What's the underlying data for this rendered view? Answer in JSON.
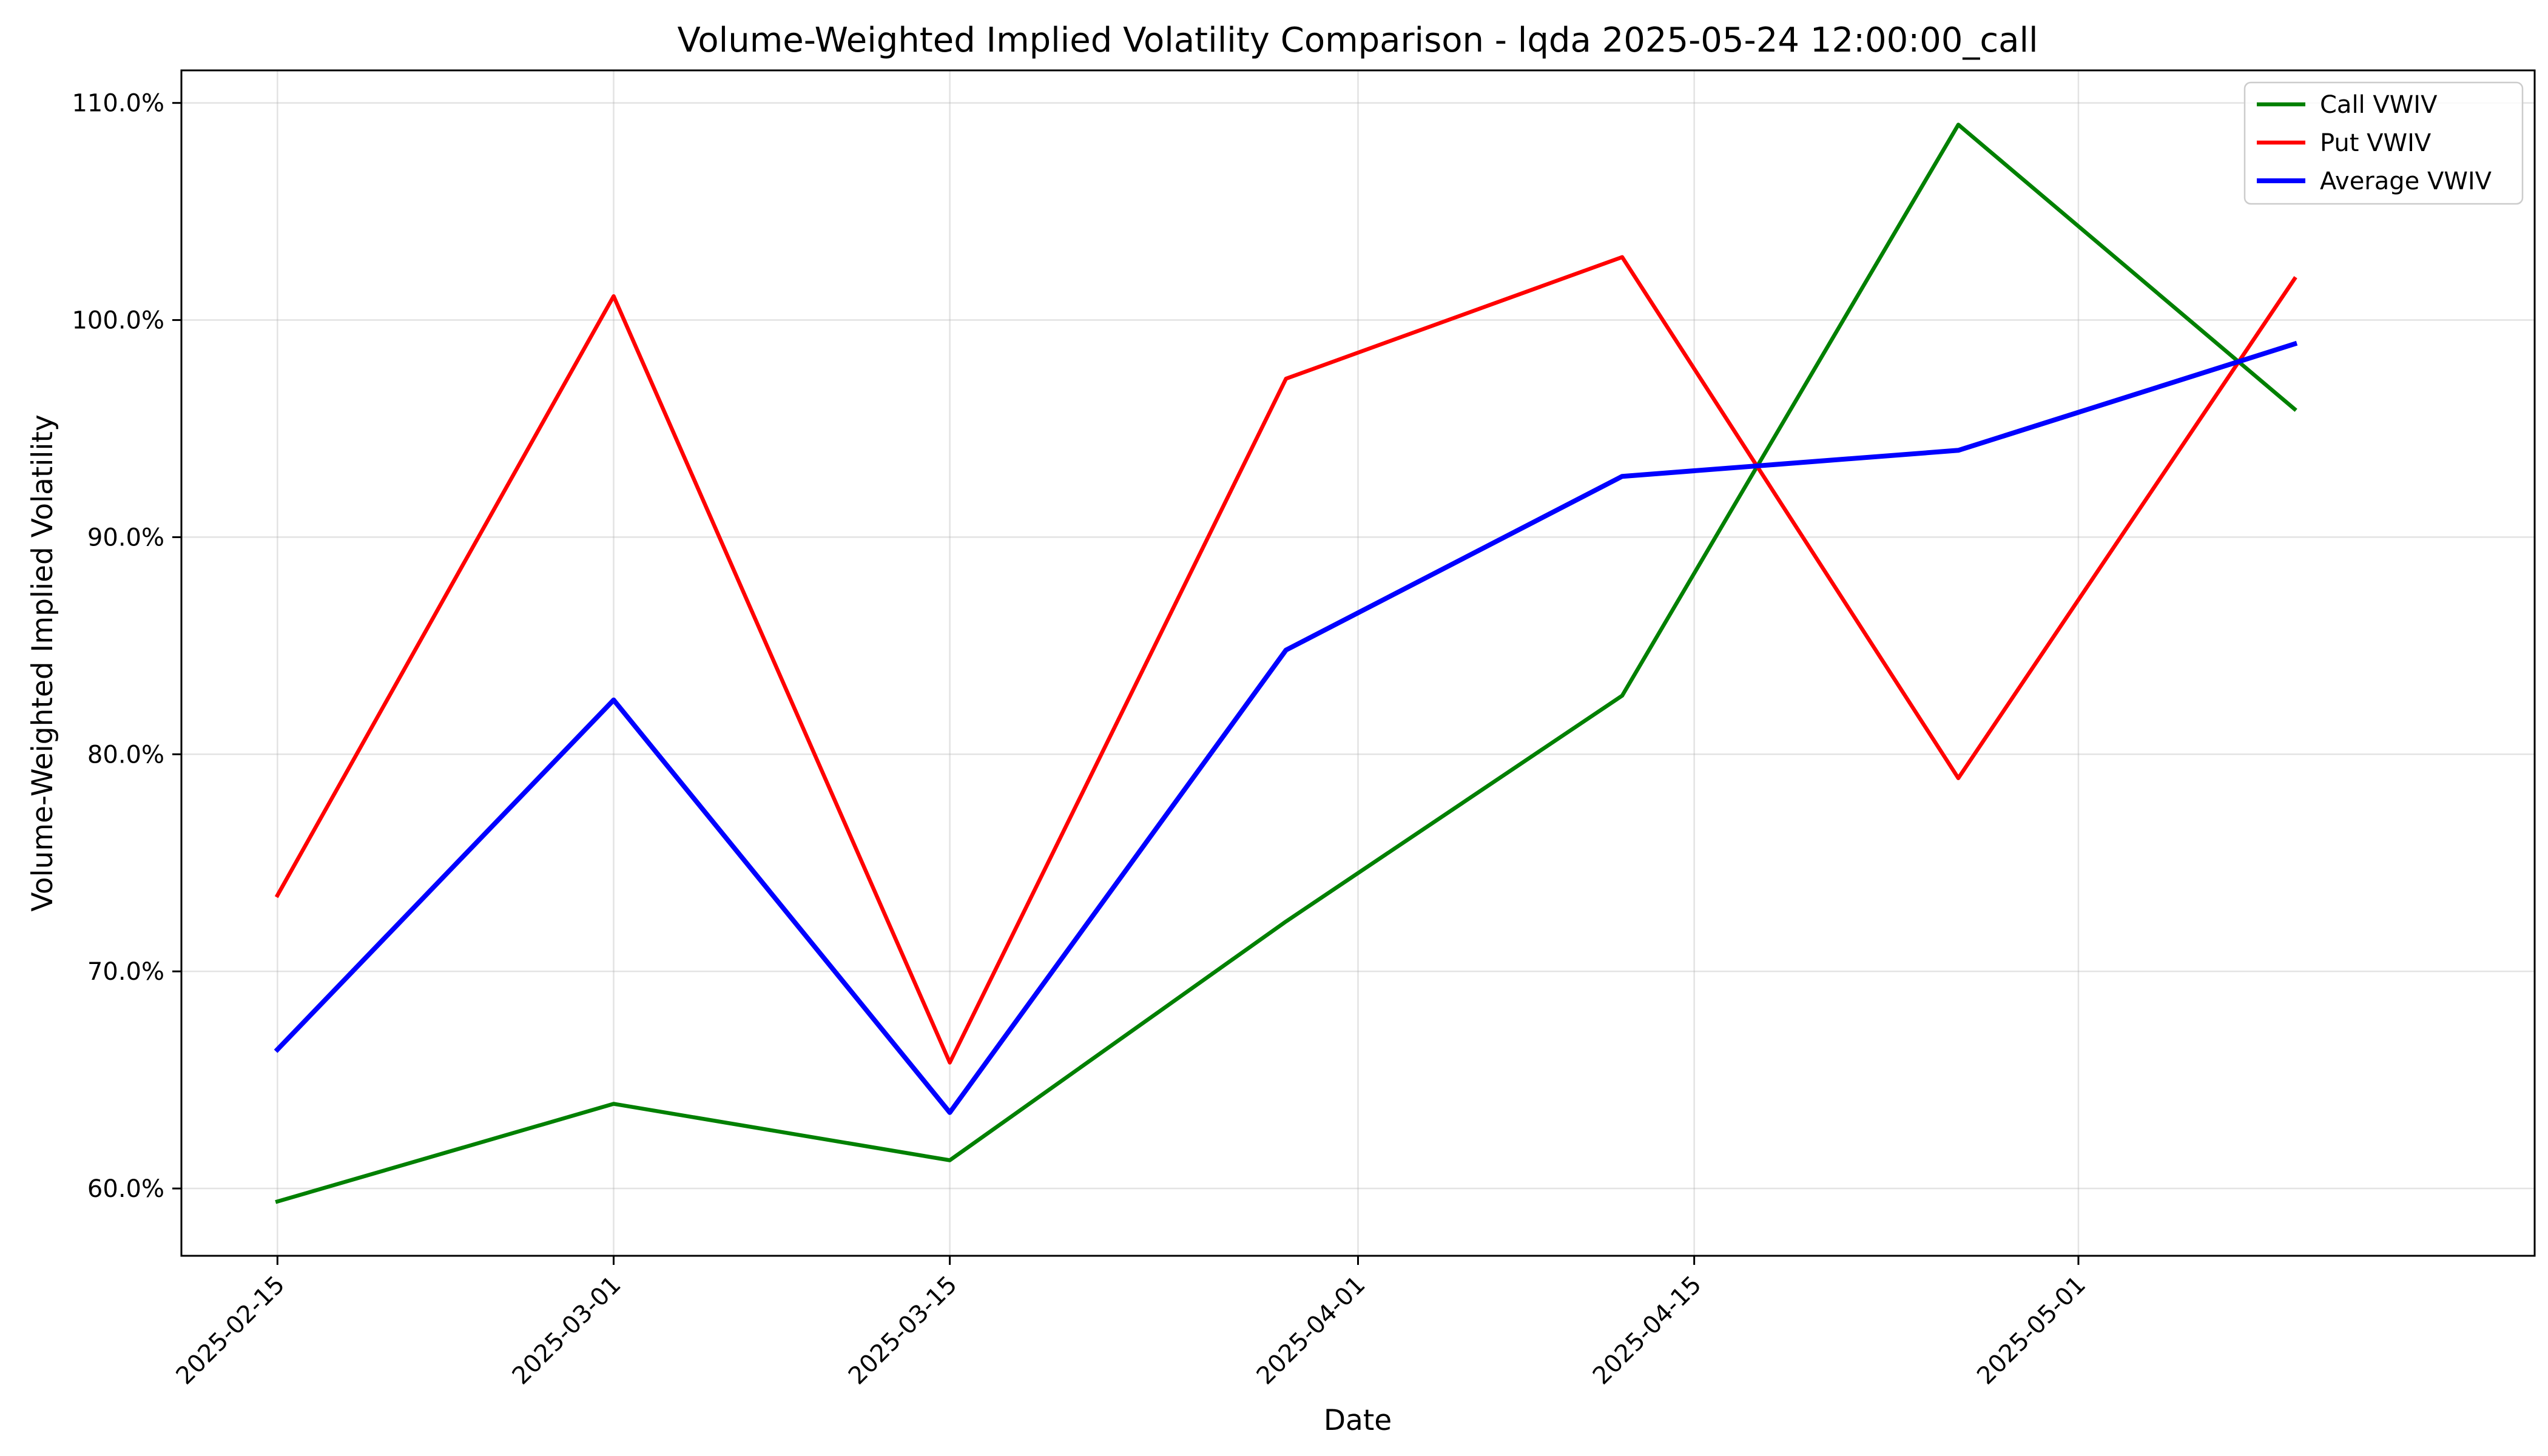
{
  "chart_data": {
    "type": "line",
    "title": "Volume-Weighted Implied Volatility Comparison - lqda 2025-05-24 12:00:00_call",
    "xlabel": "Date",
    "ylabel": "Volume-Weighted Implied Volatility",
    "x_ticks": [
      "2025-02-15",
      "2025-03-01",
      "2025-03-15",
      "2025-04-01",
      "2025-04-15",
      "2025-05-01"
    ],
    "y_ticks": [
      60,
      70,
      80,
      90,
      100,
      110
    ],
    "y_tick_labels": [
      "60.0%",
      "70.0%",
      "80.0%",
      "90.0%",
      "100.0%",
      "110.0%"
    ],
    "xlim": [
      "2025-02-11",
      "2025-05-20"
    ],
    "ylim": [
      56.9,
      111.5
    ],
    "y_unit": "percent",
    "grid": true,
    "legend_position": "upper right",
    "x": [
      "2025-02-15",
      "2025-03-01",
      "2025-03-15",
      "2025-03-29",
      "2025-04-12",
      "2025-04-26",
      "2025-05-10"
    ],
    "series": [
      {
        "name": "Call VWIV",
        "color": "#008000",
        "values": [
          59.4,
          63.9,
          61.3,
          72.3,
          82.7,
          109.0,
          95.9
        ]
      },
      {
        "name": "Put VWIV",
        "color": "#ff0000",
        "values": [
          73.5,
          101.1,
          65.8,
          97.3,
          102.9,
          78.9,
          101.9
        ]
      },
      {
        "name": "Average VWIV",
        "color": "#0000ff",
        "values": [
          66.4,
          82.5,
          63.5,
          84.8,
          92.8,
          94.0,
          98.9
        ]
      }
    ]
  }
}
